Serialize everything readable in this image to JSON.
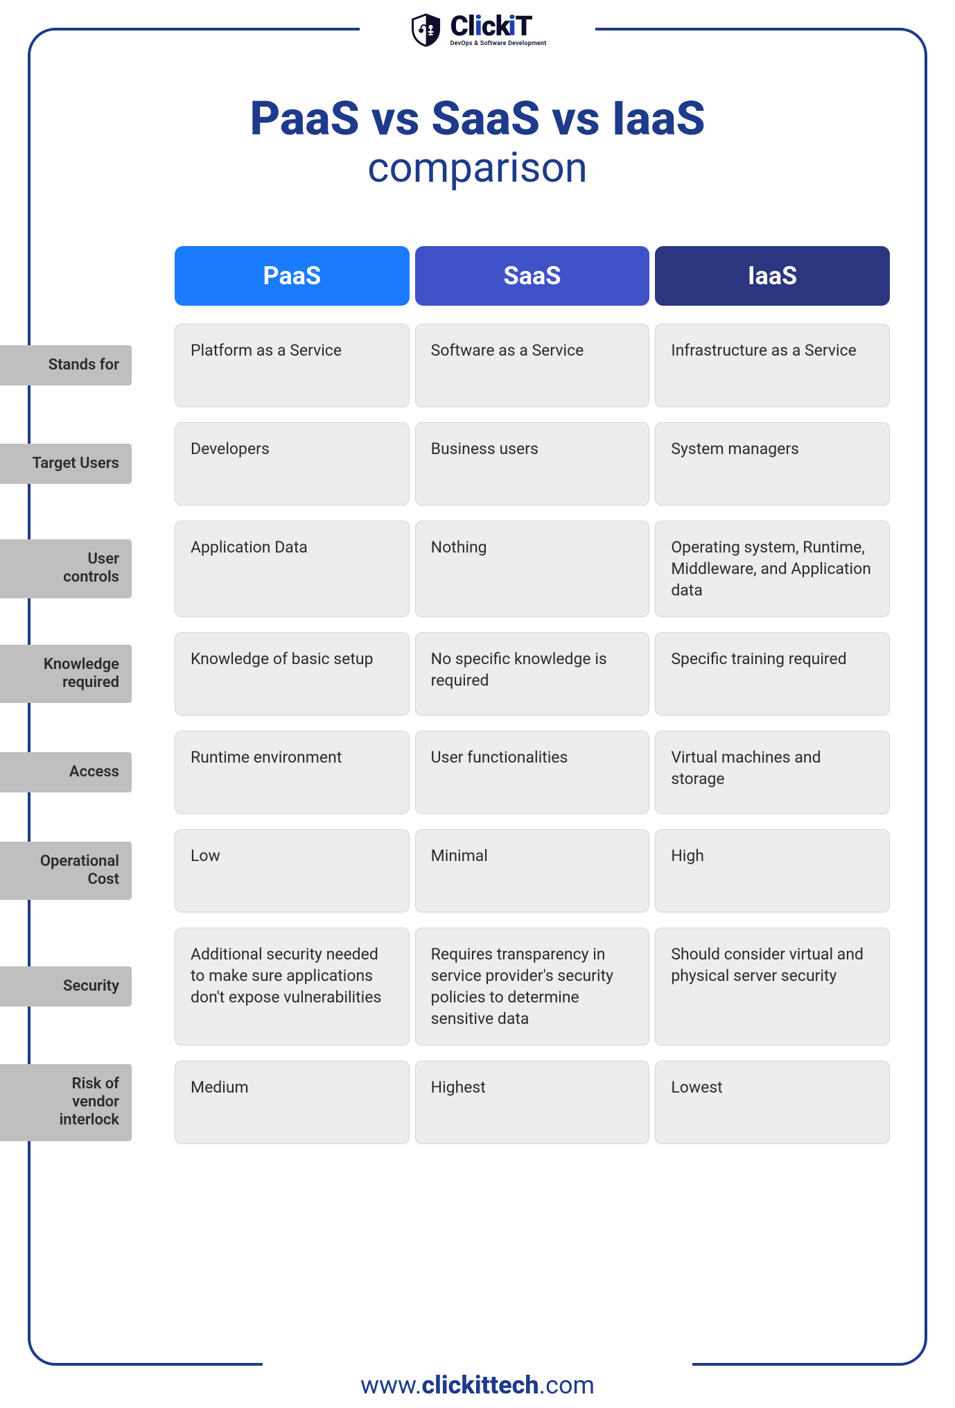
{
  "logo": {
    "brand_text": "ClickiT",
    "tagline": "DevOps & Software Development",
    "shield_color": "#0e0e2c",
    "accent_color": "#1e40af"
  },
  "title": {
    "main": "PaaS vs SaaS vs IaaS",
    "sub": "comparison",
    "color": "#1e3a8a",
    "main_fontsize": 68,
    "sub_fontsize": 60
  },
  "frame": {
    "border_color": "#1e3a8a",
    "background": "#ffffff"
  },
  "columns": [
    {
      "key": "paas",
      "label": "PaaS",
      "color": "#1a7bff"
    },
    {
      "key": "saas",
      "label": "SaaS",
      "color": "#3f51c7"
    },
    {
      "key": "iaas",
      "label": "IaaS",
      "color": "#2c357f"
    }
  ],
  "row_label_bg": "#bfbfbf",
  "cell_bg": "#ededed",
  "cell_border": "#d6d6d6",
  "text_color": "#2b2b2b",
  "rows": [
    {
      "label": "Stands for",
      "paas": "Platform as a Service",
      "saas": "Software as a Service",
      "iaas": "Infrastructure as a Service"
    },
    {
      "label": "Target Users",
      "paas": "Developers",
      "saas": "Business users",
      "iaas": "System managers"
    },
    {
      "label": "User controls",
      "paas": "Application Data",
      "saas": "Nothing",
      "iaas": "Operating system, Runtime, Middleware, and Application data"
    },
    {
      "label": "Knowledge required",
      "paas": "Knowledge of basic setup",
      "saas": "No specific knowledge is required",
      "iaas": "Specific training required"
    },
    {
      "label": "Access",
      "paas": "Runtime environment",
      "saas": "User functionalities",
      "iaas": "Virtual machines and storage"
    },
    {
      "label": "Operational Cost",
      "paas": "Low",
      "saas": "Minimal",
      "iaas": "High"
    },
    {
      "label": "Security",
      "paas": "Additional security needed to make sure applications don't expose vulnerabilities",
      "saas": "Requires transparency in service provider's security policies to determine sensitive data",
      "iaas": "Should consider virtual and physical server security"
    },
    {
      "label": "Risk of vendor interlock",
      "paas": "Medium",
      "saas": "Highest",
      "iaas": "Lowest"
    }
  ],
  "footer": {
    "prefix": "www.",
    "bold": "clickittech",
    "suffix": ".com",
    "color": "#1e3a8a",
    "fontsize": 36
  }
}
